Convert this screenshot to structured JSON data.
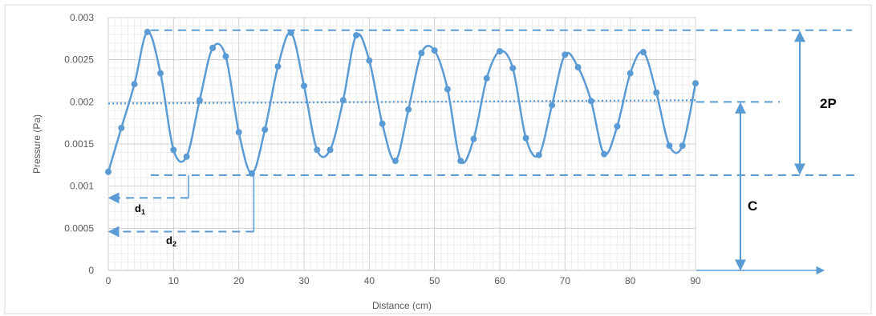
{
  "chart_data": {
    "type": "scatter",
    "line_style": "smoothed",
    "grid": true,
    "xlabel": "Distance (cm)",
    "ylabel": "Pressure (Pa)",
    "xlim": [
      0,
      90
    ],
    "ylim": [
      0,
      0.003
    ],
    "xticks": [
      "0",
      "10",
      "20",
      "30",
      "40",
      "50",
      "60",
      "70",
      "80",
      "90"
    ],
    "yticks": [
      "0",
      "0.0005",
      "0.001",
      "0.0015",
      "0.002",
      "0.0025",
      "0.003"
    ],
    "color": "#5b9bd5",
    "series": [
      {
        "x": [
          0,
          2,
          4,
          6,
          8,
          10,
          12,
          14,
          16,
          18,
          20,
          22,
          24,
          26,
          28,
          30,
          32,
          34,
          36,
          38,
          40,
          42,
          44,
          46,
          48,
          50,
          52,
          54,
          56,
          58,
          60,
          62,
          64,
          66,
          68,
          70,
          72,
          74,
          76,
          78,
          80,
          82,
          84,
          86,
          88,
          90
        ],
        "y": [
          0.00117,
          0.00169,
          0.00221,
          0.00283,
          0.00234,
          0.00143,
          0.00135,
          0.00202,
          0.00264,
          0.00254,
          0.00164,
          0.00115,
          0.00167,
          0.00242,
          0.00282,
          0.00219,
          0.00143,
          0.00143,
          0.00202,
          0.00279,
          0.00249,
          0.00174,
          0.0013,
          0.00191,
          0.00258,
          0.00261,
          0.00215,
          0.0013,
          0.00156,
          0.00228,
          0.0026,
          0.0024,
          0.00157,
          0.00137,
          0.00196,
          0.00256,
          0.00241,
          0.00201,
          0.00138,
          0.00171,
          0.00234,
          0.00259,
          0.00211,
          0.00148,
          0.00148,
          0.00222
        ]
      }
    ],
    "annotations": {
      "two_p_label": "2P",
      "c_label": "C",
      "d1_label": "d",
      "d1_sub": "1",
      "d2_label": "d",
      "d2_sub": "2",
      "max_level": 0.00285,
      "mean_level": 0.002,
      "min_level": 0.00113,
      "d1_end_x": 12.3,
      "d1_y": 0.00086,
      "d2_end_x": 22.3,
      "d2_y": 0.00046
    }
  }
}
